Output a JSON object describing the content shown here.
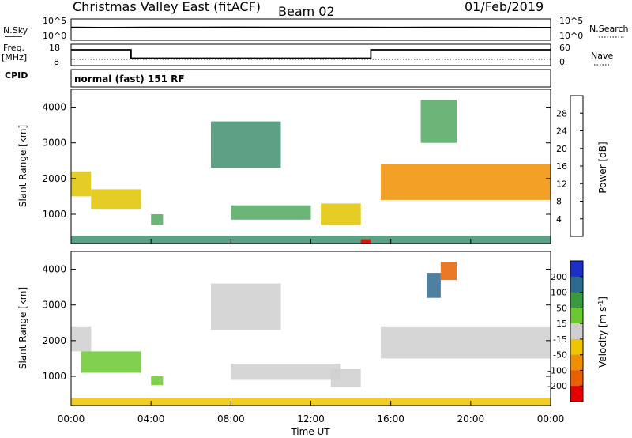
{
  "header": {
    "title": "Christmas Valley East (fitACF)",
    "beam": "Beam 02",
    "date": "01/Feb/2019"
  },
  "strip1": {
    "left_label": "N.Sky",
    "left_ticks": [
      "10^5",
      "10^0"
    ],
    "right_label": "N.Search",
    "right_ticks": [
      "10^5",
      "10^0"
    ]
  },
  "strip2": {
    "left_label": "Freq.",
    "left_unit": "[MHz]",
    "left_ticks": [
      "18",
      "8"
    ],
    "right_label": "Nave",
    "right_ticks": [
      "60",
      "0"
    ],
    "cpid_label": "CPID",
    "cpid_text": "normal (fast) 151 RF"
  },
  "colors": {
    "power_scale": [
      "#0a14e6",
      "#2a4aa0",
      "#3f8f70",
      "#52a860",
      "#e0c400",
      "#f09000",
      "#e85000",
      "#e60000"
    ],
    "velocity_scale": [
      "#1a30c8",
      "#2e6a90",
      "#3a9a40",
      "#6cc830",
      "#cfcfcf",
      "#f0c400",
      "#f09000",
      "#e86000",
      "#e60000"
    ]
  },
  "chart_data": [
    {
      "type": "line",
      "title": "",
      "xlabel": "",
      "ylabel": "N.Sky",
      "x_range_hours": [
        0,
        24
      ],
      "yscale": "log",
      "ylim": [
        1,
        100000
      ],
      "series": [
        {
          "name": "N.Sky",
          "x": [
            0,
            2,
            4,
            6,
            8,
            10,
            12,
            14,
            16,
            18,
            20,
            22,
            24
          ],
          "values": [
            1000,
            900,
            1000,
            1000,
            1100,
            1000,
            1000,
            1000,
            950,
            1000,
            1000,
            950,
            900
          ]
        },
        {
          "name": "N.Search",
          "x": [
            0,
            24
          ],
          "values": [
            1000,
            1000
          ]
        }
      ]
    },
    {
      "type": "line",
      "title": "",
      "xlabel": "",
      "ylabel": "Freq. [MHz]",
      "x_range_hours": [
        0,
        24
      ],
      "ylim": [
        8,
        18
      ],
      "series": [
        {
          "name": "Freq.",
          "x": [
            0,
            3,
            3,
            15,
            15,
            24
          ],
          "values": [
            15.4,
            15.4,
            11.5,
            11.5,
            15.4,
            15.4
          ]
        },
        {
          "name": "Nave",
          "x": [
            0,
            24
          ],
          "values": [
            18,
            18
          ]
        }
      ]
    },
    {
      "type": "heatmap",
      "ylabel": "Slant Range [km]",
      "yticks": [
        "1000",
        "2000",
        "3000",
        "4000"
      ],
      "ylim": [
        180,
        4500
      ],
      "colorbar_label": "Power [dB]",
      "colorbar_ticks": [
        "4",
        "8",
        "12",
        "16",
        "20",
        "24",
        "28"
      ],
      "zlim": [
        0,
        30
      ],
      "regions": [
        {
          "t0": 0.0,
          "t1": 1.0,
          "r0": 1500,
          "r1": 2200,
          "value": 18
        },
        {
          "t0": 1.0,
          "t1": 3.5,
          "r0": 1150,
          "r1": 1700,
          "value": 16
        },
        {
          "t0": 4.0,
          "t1": 4.6,
          "r0": 700,
          "r1": 1000,
          "value": 12
        },
        {
          "t0": 7.0,
          "t1": 10.5,
          "r0": 2300,
          "r1": 3600,
          "value": 10
        },
        {
          "t0": 8.0,
          "t1": 12.0,
          "r0": 850,
          "r1": 1250,
          "value": 14
        },
        {
          "t0": 12.5,
          "t1": 14.5,
          "r0": 700,
          "r1": 1300,
          "value": 18
        },
        {
          "t0": 15.5,
          "t1": 24.0,
          "r0": 1400,
          "r1": 2400,
          "value": 20
        },
        {
          "t0": 17.5,
          "t1": 19.3,
          "r0": 3000,
          "r1": 4200,
          "value": 12
        },
        {
          "t0": 0.0,
          "t1": 24.0,
          "r0": 180,
          "r1": 400,
          "value": 8
        },
        {
          "t0": 14.5,
          "t1": 15.0,
          "r0": 180,
          "r1": 300,
          "value": 30
        }
      ]
    },
    {
      "type": "heatmap",
      "ylabel": "Slant Range [km]",
      "yticks": [
        "1000",
        "2000",
        "3000",
        "4000"
      ],
      "ylim": [
        180,
        4500
      ],
      "xlabel": "Time UT",
      "xticks": [
        "00:00",
        "04:00",
        "08:00",
        "12:00",
        "16:00",
        "20:00",
        "00:00"
      ],
      "colorbar_label": "Velocity [m s^-1]",
      "colorbar_ticks": [
        "200",
        "100",
        "50",
        "15",
        "-15",
        "-50",
        "-100",
        "-200"
      ],
      "zlim": [
        -250,
        250
      ],
      "regions": [
        {
          "t0": 0.0,
          "t1": 1.0,
          "r0": 1700,
          "r1": 2400,
          "value": 0
        },
        {
          "t0": 0.5,
          "t1": 3.5,
          "r0": 1100,
          "r1": 1700,
          "value": 40
        },
        {
          "t0": 4.0,
          "t1": 4.6,
          "r0": 750,
          "r1": 1000,
          "value": 40
        },
        {
          "t0": 7.0,
          "t1": 10.5,
          "r0": 2300,
          "r1": 3600,
          "value": 0
        },
        {
          "t0": 8.0,
          "t1": 13.5,
          "r0": 900,
          "r1": 1350,
          "value": 0
        },
        {
          "t0": 13.0,
          "t1": 14.5,
          "r0": 700,
          "r1": 1200,
          "value": 0
        },
        {
          "t0": 15.5,
          "t1": 24.0,
          "r0": 1500,
          "r1": 2400,
          "value": 0
        },
        {
          "t0": 17.8,
          "t1": 18.5,
          "r0": 3200,
          "r1": 3900,
          "value": 180
        },
        {
          "t0": 18.5,
          "t1": 19.3,
          "r0": 3700,
          "r1": 4200,
          "value": -180
        },
        {
          "t0": 0.0,
          "t1": 24.0,
          "r0": 180,
          "r1": 400,
          "value": -40
        }
      ]
    }
  ]
}
